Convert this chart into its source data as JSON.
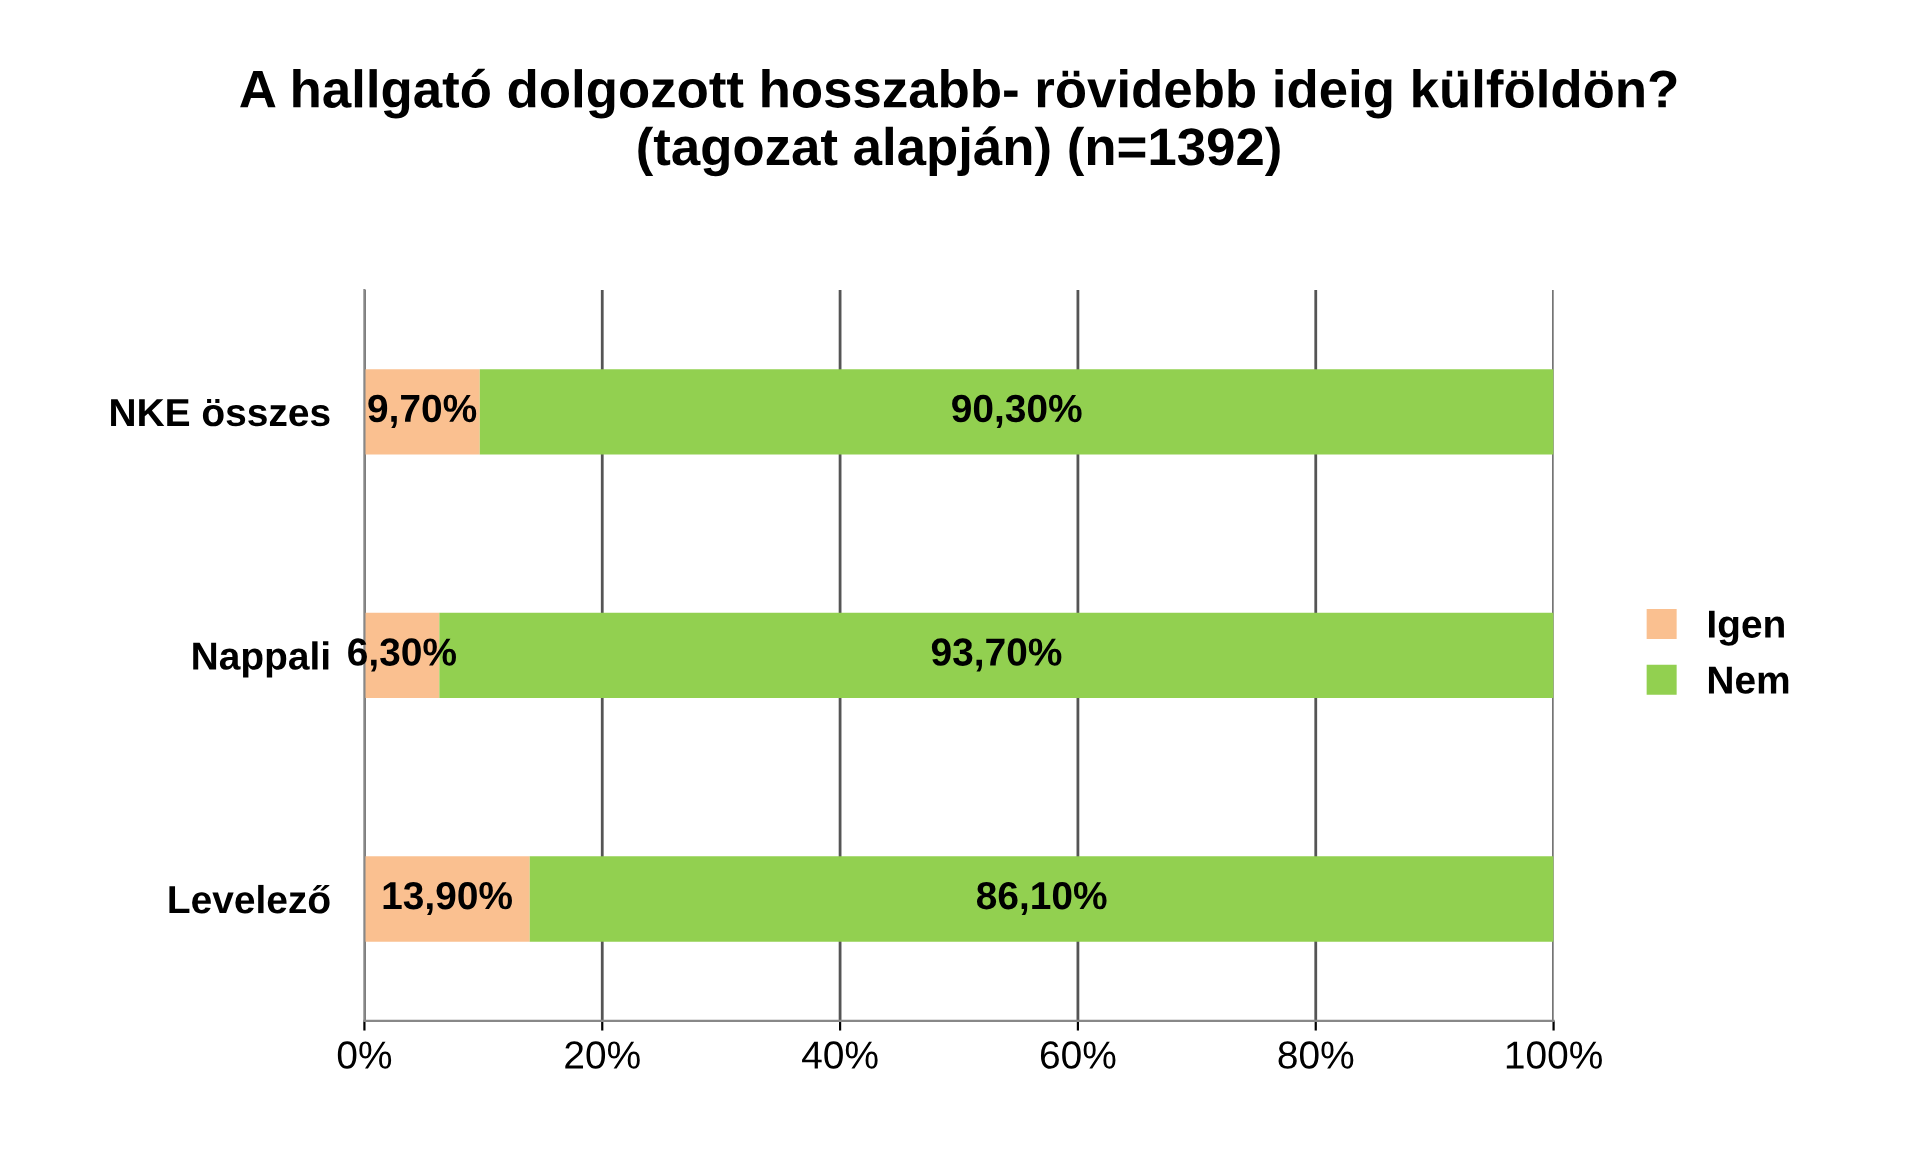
{
  "chart_data": {
    "type": "bar",
    "orientation": "horizontal",
    "stacked": true,
    "title": "A hallgató dolgozott hosszabb- rövidebb ideig külföldön?\n(tagozat alapján) (n=1392)",
    "categories": [
      "NKE összes",
      "Nappali",
      "Levelező"
    ],
    "series": [
      {
        "name": "Igen",
        "color": "#fac090",
        "values": [
          9.7,
          6.3,
          13.9
        ],
        "value_labels": [
          "9,70%",
          "6,30%",
          "13,90%"
        ]
      },
      {
        "name": "Nem",
        "color": "#92d050",
        "values": [
          90.3,
          93.7,
          86.1
        ],
        "value_labels": [
          "90,30%",
          "93,70%",
          "86,10%"
        ]
      }
    ],
    "xlim": [
      0,
      100
    ],
    "xticks": [
      {
        "value": 0,
        "label": "0%"
      },
      {
        "value": 20,
        "label": "20%"
      },
      {
        "value": 40,
        "label": "40%"
      },
      {
        "value": 60,
        "label": "60%"
      },
      {
        "value": 80,
        "label": "80%"
      },
      {
        "value": 100,
        "label": "100%"
      }
    ],
    "grid": "x",
    "legend": "right"
  }
}
